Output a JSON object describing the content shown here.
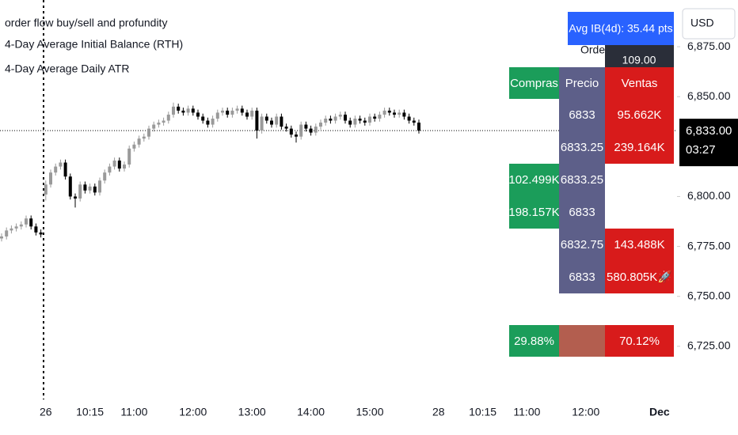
{
  "indicators": [
    "order flow buy/sell and profundity",
    "4-Day Average Initial Balance (RTH)",
    "4-Day Average Daily ATR"
  ],
  "currency": "USD",
  "ib_label": "Avg IB(4d): 35.44 pts",
  "depth_label": "Ordenes",
  "depth_value": "109.00",
  "order_flow": {
    "headers": [
      "Compras",
      "Precio",
      "Ventas"
    ],
    "rows": [
      [
        null,
        "6833",
        "95.662K"
      ],
      [
        null,
        "6833.25",
        "239.164K"
      ],
      [
        "102.499K",
        "6833.25",
        null
      ],
      [
        "198.157K",
        "6833",
        null
      ],
      [
        null,
        "6832.75",
        "143.488K"
      ],
      [
        null,
        "6833",
        "580.805K🚀"
      ]
    ],
    "summary": [
      "29.88%",
      "70.12%"
    ]
  },
  "chart_data": {
    "type": "candlestick",
    "categories": [
      null,
      null,
      null,
      null,
      null,
      null,
      null,
      null,
      null,
      "26",
      null,
      null,
      null,
      null,
      null,
      null,
      null,
      null,
      "10:15",
      null,
      null,
      null,
      null,
      null,
      null,
      null,
      null,
      "11:00",
      null,
      null,
      null,
      null,
      null,
      null,
      null,
      null,
      null,
      null,
      null,
      "12:00",
      null,
      null,
      null,
      null,
      null,
      null,
      null,
      null,
      null,
      null,
      null,
      "13:00",
      null,
      null,
      null,
      null,
      null,
      null,
      null,
      null,
      null,
      null,
      null,
      "14:00",
      null,
      null,
      null,
      null,
      null,
      null,
      null,
      null,
      null,
      null,
      null,
      "15:00",
      null,
      null,
      null,
      null,
      null,
      null,
      null,
      null,
      null,
      null,
      null,
      null,
      null,
      "28",
      null,
      null,
      null,
      null,
      null,
      null,
      null,
      null,
      "10:15",
      null,
      null,
      null,
      null,
      null,
      null,
      null,
      null,
      "11:00",
      null,
      null,
      null,
      null,
      null,
      null,
      null,
      null,
      null,
      null,
      null,
      "12:00",
      null,
      null,
      null,
      null,
      null,
      null,
      null,
      null,
      null,
      null,
      null,
      null,
      null,
      null,
      "Dec"
    ],
    "open": [
      6779,
      6780,
      6783,
      6784,
      6785,
      6786,
      6789,
      6785,
      6782,
      6801,
      6806,
      6812,
      6815,
      6817,
      6810,
      6800,
      6799,
      6806,
      6803,
      6805,
      6802,
      6808,
      6812,
      6815,
      6818,
      6814,
      6816,
      6824,
      6826,
      6829,
      6830,
      6834,
      6836,
      6837,
      6838,
      6841,
      6845,
      6843,
      6842,
      6844,
      6842,
      6840,
      6838,
      6836,
      6839,
      6842,
      6843,
      6841,
      6843,
      6844,
      6842,
      6840,
      6843,
      6833,
      6840,
      6838,
      6836,
      6840,
      6835,
      6834,
      6831,
      6830,
      6836,
      6834,
      6832,
      6835,
      6837,
      6839,
      6838,
      6840,
      6841,
      6838,
      6836,
      6839,
      6838,
      6837,
      6840,
      6839,
      6841,
      6843,
      6842,
      6841,
      6842,
      6840,
      6838,
      6837,
      null,
      null,
      null,
      null,
      null,
      null,
      null,
      null,
      null,
      null,
      null,
      null,
      null,
      null,
      null,
      null,
      null,
      null,
      null,
      null,
      null,
      null,
      null,
      null,
      null,
      null,
      null,
      null,
      null,
      null,
      null,
      null,
      null,
      null,
      null,
      null,
      null,
      null,
      null,
      null,
      null,
      null,
      null,
      null,
      null,
      null,
      null,
      null,
      null
    ],
    "high": [
      6781.5,
      6784.5,
      6785.5,
      6786.5,
      6787.5,
      6790.5,
      6790.5,
      6786.5,
      6783.5,
      6808,
      6813.5,
      6816.5,
      6818.5,
      6818.5,
      6811.5,
      6801.5,
      6807.5,
      6807.5,
      6806.5,
      6806.5,
      6809.5,
      6813.5,
      6816.5,
      6819.5,
      6819.5,
      6817.5,
      6825.5,
      6827.5,
      6830.5,
      6831.5,
      6835.5,
      6837.5,
      6838.5,
      6839.5,
      6842.5,
      6847,
      6846.5,
      6844.5,
      6845.5,
      6845.5,
      6843.5,
      6841.5,
      6839.5,
      6840.5,
      6843.5,
      6844.5,
      6844.5,
      6844.5,
      6845.5,
      6845.5,
      6843.5,
      6844.5,
      6844.5,
      6841.5,
      6841.5,
      6839.5,
      6841.5,
      6841.5,
      6836.5,
      6835.5,
      6832.5,
      6837.5,
      6837.5,
      6835.5,
      6836.5,
      6838.5,
      6840.5,
      6840.5,
      6841.5,
      6842.5,
      6842.5,
      6839.5,
      6840.5,
      6840.5,
      6839.5,
      6841.5,
      6841.5,
      6842.5,
      6844.5,
      6844.5,
      6843.5,
      6843.5,
      6843.5,
      6841.5,
      6839.5,
      6838.5,
      null,
      null,
      null,
      null,
      null,
      null,
      null,
      null,
      null,
      null,
      null,
      null,
      null,
      null,
      null,
      null,
      null,
      null,
      null,
      null,
      null,
      null,
      null,
      null,
      null,
      null,
      null,
      null,
      null,
      null,
      null,
      null,
      null,
      null,
      null,
      null,
      null,
      null,
      null,
      null,
      null,
      null,
      null,
      null,
      null,
      null,
      null,
      null,
      null
    ],
    "low": [
      6777.5,
      6778.5,
      6781.5,
      6782.5,
      6783.5,
      6784.5,
      6783.5,
      6780.5,
      6779.5,
      6798,
      6804.5,
      6810.5,
      6813.5,
      6808.5,
      6798.5,
      6794.5,
      6797.5,
      6801.5,
      6801.5,
      6800.5,
      6800.5,
      6806.5,
      6810.5,
      6813.5,
      6812.5,
      6812.5,
      6814.5,
      6822.5,
      6824.5,
      6827.5,
      6828.5,
      6832.5,
      6834.5,
      6835.5,
      6836.5,
      6839.5,
      6841.5,
      6840.5,
      6840.5,
      6840.5,
      6838.5,
      6836.5,
      6834.5,
      6834.5,
      6837.5,
      6840.5,
      6839.5,
      6839.5,
      6841.5,
      6840.5,
      6838.5,
      6838.5,
      6829,
      6831.5,
      6836.5,
      6834.5,
      6834.5,
      6833.5,
      6832.5,
      6829.5,
      6827,
      6828.5,
      6832.5,
      6830.5,
      6830.5,
      6833.5,
      6835.5,
      6836.5,
      6836.5,
      6838.5,
      6836.5,
      6834.5,
      6834.5,
      6836.5,
      6835.5,
      6835.5,
      6837.5,
      6837.5,
      6839.5,
      6840.5,
      6839.5,
      6839.5,
      6838.5,
      6836.5,
      6835.5,
      6831.5,
      null,
      null,
      null,
      null,
      null,
      null,
      null,
      null,
      null,
      null,
      null,
      null,
      null,
      null,
      null,
      null,
      null,
      null,
      null,
      null,
      null,
      null,
      null,
      null,
      null,
      null,
      null,
      null,
      null,
      null,
      null,
      null,
      null,
      null,
      null,
      null,
      null,
      null,
      null,
      null,
      null,
      null,
      null,
      null,
      null,
      null,
      null,
      null,
      null
    ],
    "close": [
      6780,
      6783,
      6784,
      6785,
      6786,
      6789,
      6785,
      6782,
      6781,
      6806,
      6812,
      6815,
      6817,
      6810,
      6800,
      6799,
      6806,
      6803,
      6805,
      6802,
      6808,
      6812,
      6815,
      6818,
      6814,
      6816,
      6824,
      6826,
      6829,
      6830,
      6834,
      6836,
      6837,
      6838,
      6841,
      6845,
      6843,
      6842,
      6844,
      6842,
      6840,
      6838,
      6836,
      6839,
      6842,
      6843,
      6841,
      6843,
      6844,
      6842,
      6840,
      6843,
      6833,
      6840,
      6838,
      6836,
      6840,
      6835,
      6834,
      6831,
      6830,
      6836,
      6834,
      6832,
      6835,
      6837,
      6839,
      6838,
      6840,
      6841,
      6838,
      6836,
      6839,
      6838,
      6837,
      6840,
      6839,
      6841,
      6843,
      6842,
      6841,
      6842,
      6840,
      6838,
      6837,
      6833,
      null,
      null,
      null,
      null,
      null,
      null,
      null,
      null,
      null,
      null,
      null,
      null,
      null,
      null,
      null,
      null,
      null,
      null,
      null,
      null,
      null,
      null,
      null,
      null,
      null,
      null,
      null,
      null,
      null,
      null,
      null,
      null,
      null,
      null,
      null,
      null,
      null,
      null,
      null,
      null,
      null,
      null,
      null,
      null,
      null,
      null,
      null,
      null,
      null
    ],
    "up_color": "#9a9a9a",
    "down_color": "#000000",
    "ylim": [
      6698.4,
      6898.4
    ],
    "yticks": [
      {
        "value": 6725,
        "label": "6,725.00"
      },
      {
        "value": 6750,
        "label": "6,750.00"
      },
      {
        "value": 6775,
        "label": "6,775.00"
      },
      {
        "value": 6800,
        "label": "6,800.00"
      },
      {
        "value": 6850,
        "label": "6,850.00"
      },
      {
        "value": 6875,
        "label": "6,875.00"
      }
    ],
    "last_price": {
      "value": 6833,
      "label": "6,833.00"
    },
    "countdown": "03:27"
  }
}
